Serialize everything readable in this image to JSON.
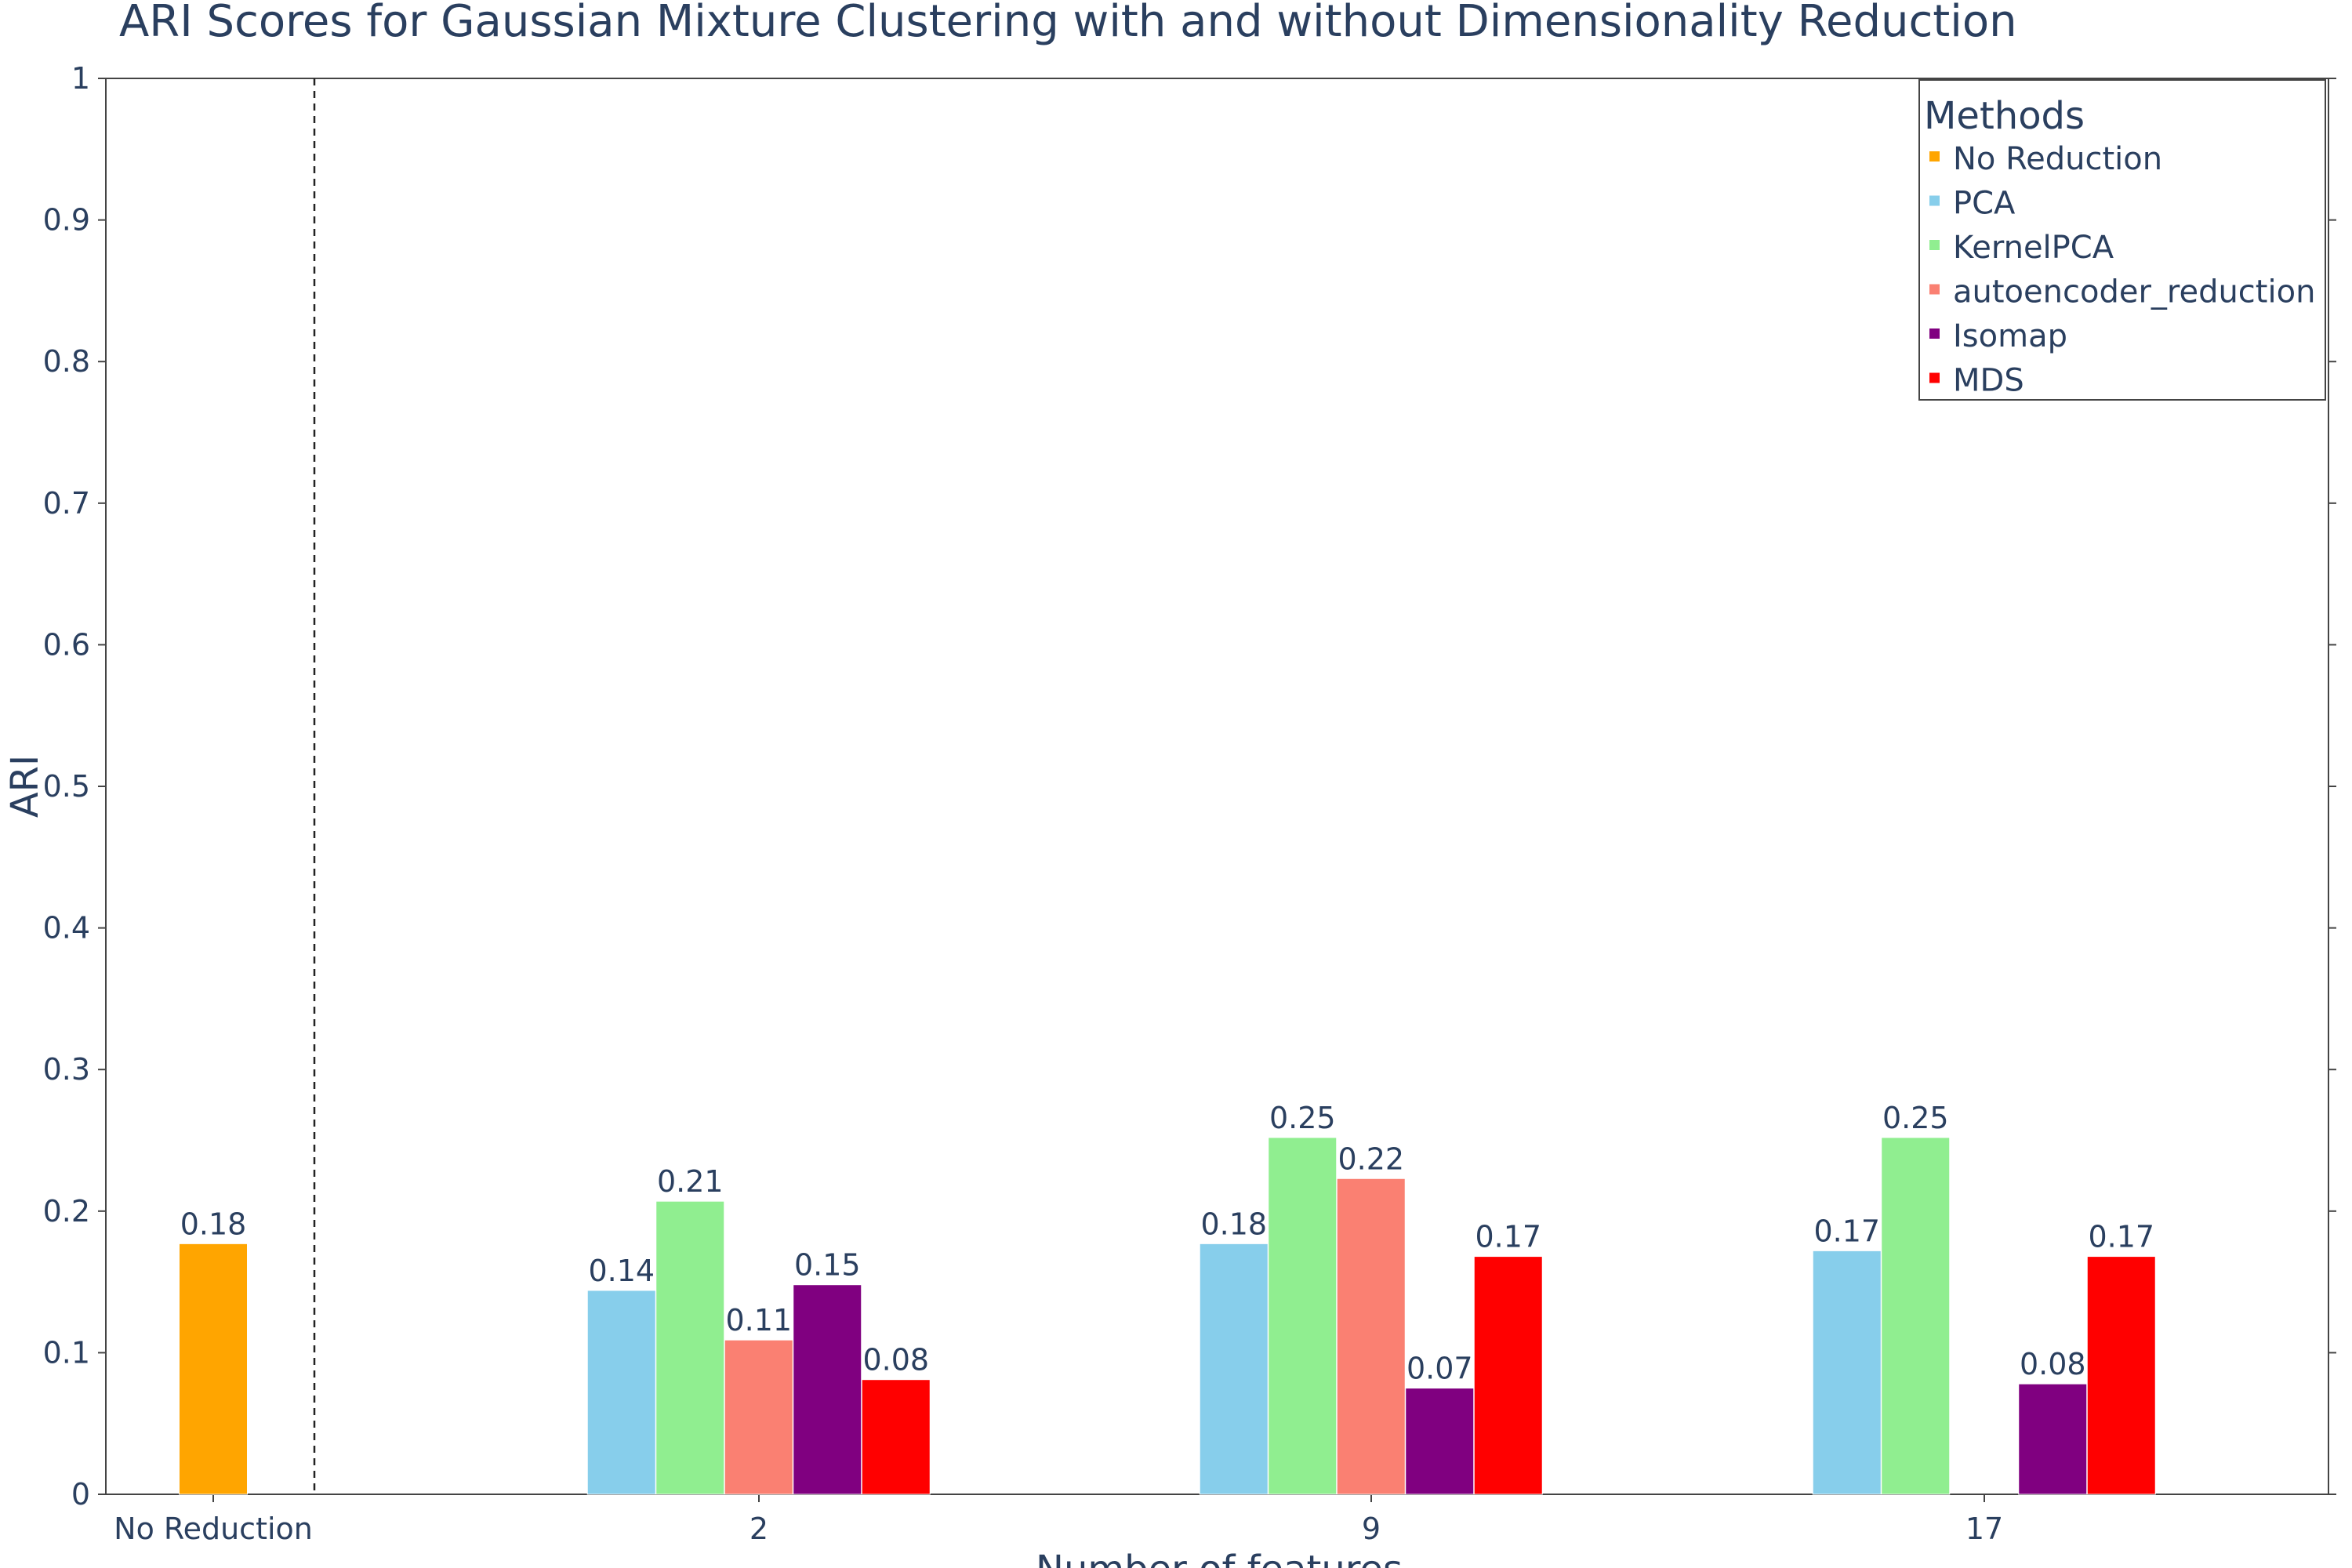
{
  "chart_data": {
    "type": "bar",
    "title": "ARI Scores for Gaussian Mixture Clustering with and without Dimensionality Reduction",
    "xlabel": "Number of features",
    "ylabel": "ARI",
    "ylim": [
      0,
      1
    ],
    "yticks": [
      "0",
      "0.1",
      "0.2",
      "0.3",
      "0.4",
      "0.5",
      "0.6",
      "0.7",
      "0.8",
      "0.9",
      "1"
    ],
    "categories": [
      "No Reduction",
      "2",
      "9",
      "17"
    ],
    "grid": false,
    "separator_after_category": "No Reduction",
    "legend": {
      "title": "Methods",
      "placement": "top-right"
    },
    "series": [
      {
        "name": "No Reduction",
        "color": "#FFA500",
        "values": [
          0.177,
          null,
          null,
          null
        ],
        "labels": [
          "0.18",
          null,
          null,
          null
        ]
      },
      {
        "name": "PCA",
        "color": "#87CEEB",
        "values": [
          null,
          0.144,
          0.177,
          0.172
        ],
        "labels": [
          null,
          "0.14",
          "0.18",
          "0.17"
        ]
      },
      {
        "name": "KernelPCA",
        "color": "#90EE90",
        "values": [
          null,
          0.207,
          0.252,
          0.252
        ],
        "labels": [
          null,
          "0.21",
          "0.25",
          "0.25"
        ]
      },
      {
        "name": "autoencoder_reduction",
        "color": "#FA8072",
        "values": [
          null,
          0.109,
          0.223,
          null
        ],
        "labels": [
          null,
          "0.11",
          "0.22",
          null
        ]
      },
      {
        "name": "Isomap",
        "color": "#800080",
        "values": [
          null,
          0.148,
          0.075,
          0.078
        ],
        "labels": [
          null,
          "0.15",
          "0.07",
          "0.08"
        ]
      },
      {
        "name": "MDS",
        "color": "#FF0000",
        "values": [
          null,
          0.081,
          0.168,
          0.168
        ],
        "labels": [
          null,
          "0.08",
          "0.17",
          "0.17"
        ]
      }
    ]
  }
}
